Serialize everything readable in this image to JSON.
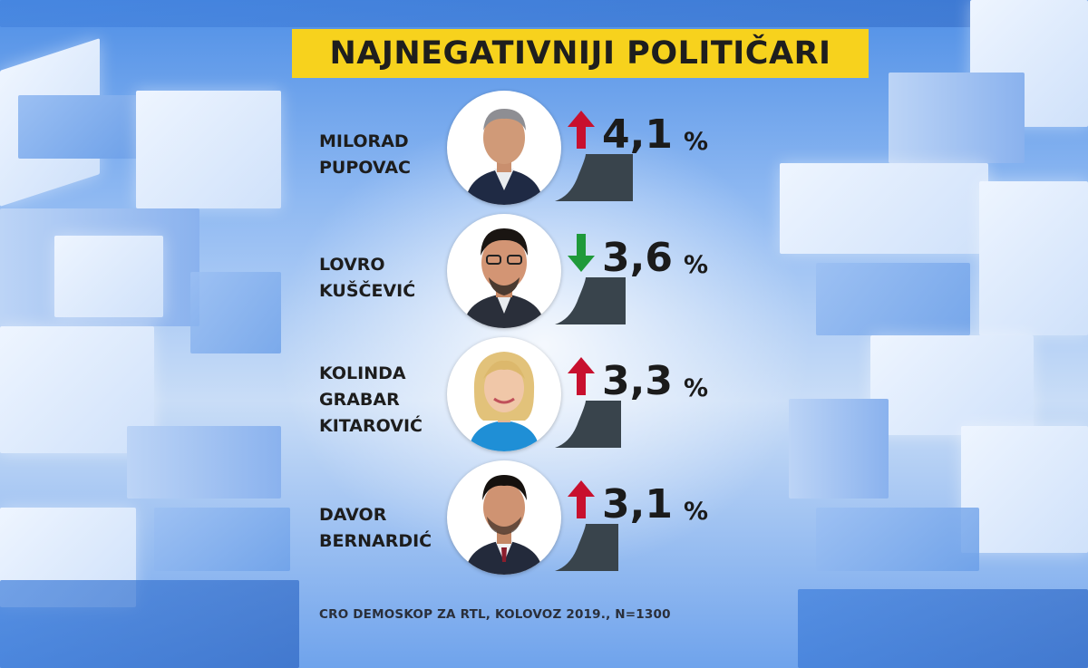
{
  "title": "NAJNEGATIVNIJI POLITIČARI",
  "source_note": "CRO DEMOSKOP ZA RTL, KOLOVOZ 2019., N=1300",
  "colors": {
    "title_bg": "#f7d21d",
    "arrow_up": "#c8102e",
    "arrow_down": "#1f9a3a",
    "bar": "#39444c"
  },
  "chart_data": {
    "type": "bar",
    "title": "NAJNEGATIVNIJI POLITIČARI",
    "unit": "%",
    "categories": [
      "MILORAD PUPOVAC",
      "LOVRO KUŠČEVIĆ",
      "KOLINDA GRABAR KITAROVIĆ",
      "DAVOR BERNARDIĆ"
    ],
    "values": [
      4.1,
      3.6,
      3.3,
      3.1
    ],
    "value_labels": [
      "4,1",
      "3,6",
      "3,3",
      "3,1"
    ],
    "trends": [
      "up",
      "down",
      "up",
      "up"
    ],
    "name_lines": [
      [
        "MILORAD",
        "PUPOVAC"
      ],
      [
        "LOVRO",
        "KUŠČEVIĆ"
      ],
      [
        "KOLINDA",
        "GRABAR",
        "KITAROVIĆ"
      ],
      [
        "DAVOR",
        "BERNARDIĆ"
      ]
    ],
    "arrow_icons": [
      "arrow-up-icon",
      "arrow-down-icon",
      "arrow-up-icon",
      "arrow-up-icon"
    ]
  }
}
